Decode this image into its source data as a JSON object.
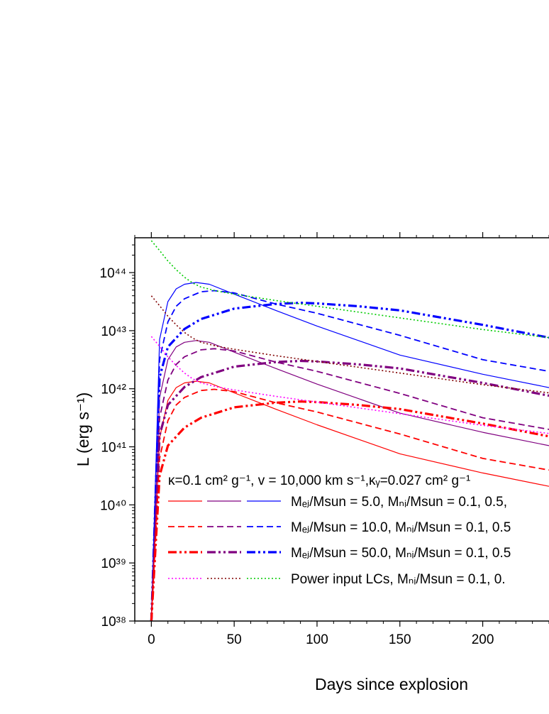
{
  "chart_data": {
    "type": "line",
    "xlabel": "Days since explosion",
    "ylabel": "L (erg s⁻¹)",
    "x_ticks": [
      "0",
      "50",
      "100",
      "150",
      "200"
    ],
    "x_tick_values": [
      0,
      50,
      100,
      150,
      200
    ],
    "y_ticks": [
      "10³⁸",
      "10³⁹",
      "10⁴⁰",
      "10⁴¹",
      "10⁴²",
      "10⁴³",
      "10⁴⁴"
    ],
    "y_tick_values": [
      38,
      39,
      40,
      41,
      42,
      43,
      44
    ],
    "xlim": [
      -10,
      240
    ],
    "ylim_log10": [
      38,
      44.6
    ],
    "y_scale": "log",
    "grid": false,
    "legend_placement": "bottom-right",
    "legend_header": "κ=0.1 cm² g⁻¹, v = 10,000 km s⁻¹,κᵧ=0.027 cm² g⁻¹",
    "legend_entries": [
      {
        "label": "Mₑⱼ/Msun = 5.0, Mₙᵢ/Msun = 0.1, 0.5,",
        "style": "solid",
        "colors": [
          "#ff0000",
          "#800080",
          "#0000ff"
        ]
      },
      {
        "label": "Mₑⱼ/Msun = 10.0, Mₙᵢ/Msun = 0.1, 0.5",
        "style": "dashed",
        "colors": [
          "#ff0000",
          "#800080",
          "#0000ff"
        ]
      },
      {
        "label": "Mₑⱼ/Msun = 50.0, Mₙᵢ/Msun = 0.1, 0.5",
        "style": "dashdotdot",
        "colors": [
          "#ff0000",
          "#800080",
          "#0000ff"
        ]
      },
      {
        "label": "Power input LCs, Mₙᵢ/Msun = 0.1, 0.",
        "style": "dotted",
        "colors": [
          "#ff00ff",
          "#800000",
          "#00cc00"
        ]
      }
    ],
    "series": [
      {
        "group": "Mej5",
        "color": "#0000ff",
        "style": "solid",
        "x": [
          0,
          5,
          10,
          15,
          20,
          27,
          35,
          50,
          75,
          100,
          150,
          200,
          240
        ],
        "log10_y": [
          38.0,
          42.85,
          43.5,
          43.72,
          43.8,
          43.83,
          43.8,
          43.63,
          43.35,
          43.08,
          42.58,
          42.25,
          42.02
        ]
      },
      {
        "group": "Mej5",
        "color": "#800080",
        "style": "solid",
        "x": [
          0,
          5,
          10,
          15,
          20,
          27,
          35,
          50,
          75,
          100,
          150,
          200,
          240
        ],
        "log10_y": [
          38.0,
          41.85,
          42.5,
          42.72,
          42.8,
          42.83,
          42.8,
          42.63,
          42.35,
          42.08,
          41.58,
          41.25,
          41.02
        ]
      },
      {
        "group": "Mej5",
        "color": "#ff0000",
        "style": "solid",
        "x": [
          0,
          5,
          10,
          15,
          20,
          27,
          35,
          50,
          75,
          100,
          150,
          200,
          240
        ],
        "log10_y": [
          38.0,
          41.15,
          41.8,
          42.02,
          42.1,
          42.13,
          42.1,
          41.93,
          41.65,
          41.38,
          40.88,
          40.55,
          40.32
        ]
      },
      {
        "group": "Mej10",
        "color": "#0000ff",
        "style": "dashed",
        "x": [
          0,
          5,
          10,
          15,
          20,
          30,
          38,
          50,
          75,
          100,
          150,
          200,
          240
        ],
        "log10_y": [
          38.0,
          42.5,
          43.15,
          43.42,
          43.55,
          43.67,
          43.69,
          43.65,
          43.46,
          43.3,
          42.92,
          42.5,
          42.3
        ]
      },
      {
        "group": "Mej10",
        "color": "#800080",
        "style": "dashed",
        "x": [
          0,
          5,
          10,
          15,
          20,
          30,
          38,
          50,
          75,
          100,
          150,
          200,
          240
        ],
        "log10_y": [
          38.0,
          41.5,
          42.15,
          42.42,
          42.55,
          42.67,
          42.69,
          42.65,
          42.46,
          42.3,
          41.92,
          41.5,
          41.3
        ]
      },
      {
        "group": "Mej10",
        "color": "#ff0000",
        "style": "dashed",
        "x": [
          0,
          5,
          10,
          15,
          20,
          30,
          38,
          50,
          75,
          100,
          150,
          200,
          240
        ],
        "log10_y": [
          38.0,
          40.8,
          41.45,
          41.72,
          41.85,
          41.97,
          41.99,
          41.95,
          41.76,
          41.6,
          41.22,
          40.8,
          40.6
        ]
      },
      {
        "group": "Mej50",
        "color": "#0000ff",
        "style": "dashdotdot",
        "x": [
          0,
          5,
          10,
          20,
          30,
          50,
          75,
          90,
          100,
          125,
          150,
          200,
          240
        ],
        "log10_y": [
          38.0,
          42.2,
          42.72,
          43.03,
          43.2,
          43.38,
          43.46,
          43.48,
          43.47,
          43.42,
          43.35,
          43.1,
          42.88
        ]
      },
      {
        "group": "Mej50",
        "color": "#800080",
        "style": "dashdotdot",
        "x": [
          0,
          5,
          10,
          20,
          30,
          50,
          75,
          90,
          100,
          125,
          150,
          200,
          240
        ],
        "log10_y": [
          38.0,
          41.2,
          41.72,
          42.03,
          42.2,
          42.38,
          42.46,
          42.48,
          42.47,
          42.42,
          42.35,
          42.1,
          41.88
        ]
      },
      {
        "group": "Mej50",
        "color": "#ff0000",
        "style": "dashdotdot",
        "x": [
          0,
          5,
          10,
          20,
          30,
          50,
          75,
          90,
          100,
          125,
          150,
          200,
          240
        ],
        "log10_y": [
          38.0,
          40.5,
          41.02,
          41.33,
          41.5,
          41.68,
          41.76,
          41.78,
          41.77,
          41.72,
          41.65,
          41.4,
          41.18
        ]
      },
      {
        "group": "Power",
        "color": "#00cc00",
        "style": "dotted",
        "x": [
          0,
          5,
          10,
          15,
          20,
          25,
          30,
          40,
          50,
          75,
          100,
          150,
          200,
          240
        ],
        "log10_y": [
          44.55,
          44.38,
          44.2,
          44.05,
          43.92,
          43.82,
          43.75,
          43.68,
          43.63,
          43.52,
          43.42,
          43.22,
          43.02,
          42.88
        ]
      },
      {
        "group": "Power",
        "color": "#800000",
        "style": "dotted",
        "x": [
          0,
          5,
          10,
          15,
          20,
          25,
          30,
          40,
          50,
          75,
          100,
          150,
          200,
          240
        ],
        "log10_y": [
          43.6,
          43.43,
          43.25,
          43.1,
          42.97,
          42.87,
          42.8,
          42.73,
          42.68,
          42.57,
          42.47,
          42.27,
          42.07,
          41.93
        ]
      },
      {
        "group": "Power",
        "color": "#ff00ff",
        "style": "dotted",
        "x": [
          0,
          5,
          10,
          15,
          20,
          25,
          30,
          40,
          50,
          75,
          100,
          150,
          200,
          240
        ],
        "log10_y": [
          42.9,
          42.73,
          42.55,
          42.4,
          42.27,
          42.17,
          42.1,
          42.03,
          41.98,
          41.87,
          41.77,
          41.57,
          41.37,
          41.23
        ]
      }
    ]
  }
}
